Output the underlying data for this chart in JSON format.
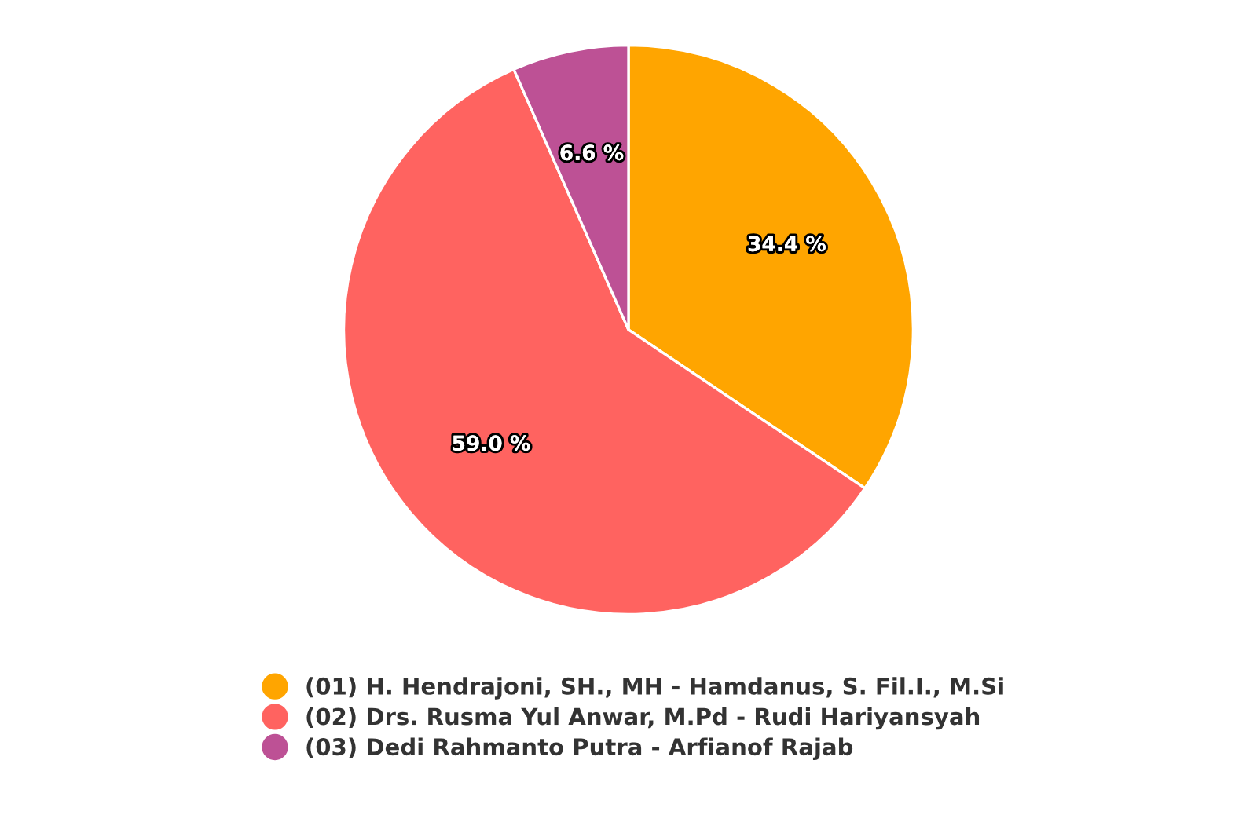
{
  "chart_data": {
    "type": "pie",
    "categories": [
      "(01) H. Hendrajoni, SH., MH - Hamdanus, S. Fil.I., M.Si",
      "(02) Drs. Rusma Yul Anwar, M.Pd - Rudi Hariyansyah",
      "(03) Dedi Rahmanto Putra - Arfianof Rajab"
    ],
    "values": [
      34.4,
      59.0,
      6.6
    ],
    "colors": [
      "#ffa500",
      "#ff6360",
      "#bd5195"
    ],
    "value_labels": [
      "34.4 %",
      "59.0 %",
      "6.6 %"
    ],
    "legend": "bottom"
  }
}
